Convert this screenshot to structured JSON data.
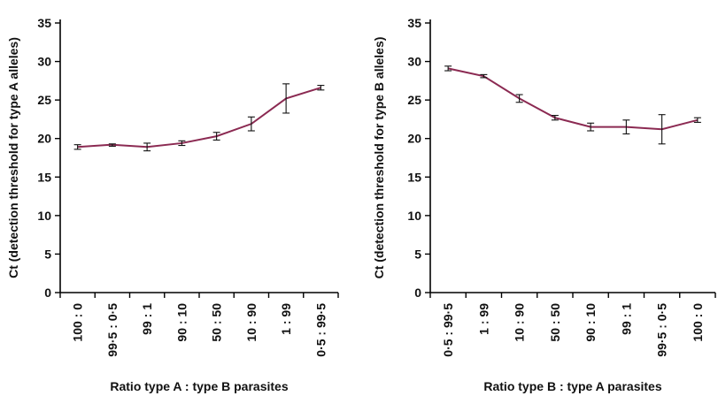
{
  "chart_data": [
    {
      "type": "line",
      "xlabel": "Ratio type A : type B parasites",
      "ylabel": "Ct (detection threshold for type A alleles)",
      "ylim": [
        0,
        35
      ],
      "yticks": [
        0,
        5,
        10,
        15,
        20,
        25,
        30,
        35
      ],
      "categories": [
        "100 : 0",
        "99·5 : 0·5",
        "99 : 1",
        "90 : 10",
        "50 : 50",
        "10 : 90",
        "1 : 99",
        "0·5 : 99·5"
      ],
      "series": [
        {
          "values": [
            18.9,
            19.2,
            18.9,
            19.4,
            20.3,
            21.9,
            25.2,
            26.6
          ],
          "err_low": [
            18.6,
            19.0,
            18.4,
            19.1,
            19.8,
            21.0,
            23.3,
            26.3
          ],
          "err_high": [
            19.2,
            19.3,
            19.4,
            19.7,
            20.8,
            22.8,
            27.1,
            26.9
          ]
        }
      ],
      "grid": false
    },
    {
      "type": "line",
      "xlabel": "Ratio type B : type A parasites",
      "ylabel": "Ct (detection threshold for type B alleles)",
      "ylim": [
        0,
        35
      ],
      "yticks": [
        0,
        5,
        10,
        15,
        20,
        25,
        30,
        35
      ],
      "categories": [
        "0·5 : 99·5",
        "1 : 99",
        "10 : 90",
        "50 : 50",
        "90 : 10",
        "99 : 1",
        "99·5 : 0·5",
        "100 : 0"
      ],
      "series": [
        {
          "values": [
            29.1,
            28.1,
            25.2,
            22.7,
            21.5,
            21.5,
            21.2,
            22.4
          ],
          "err_low": [
            28.8,
            27.9,
            24.7,
            22.4,
            21.0,
            20.6,
            19.3,
            22.1
          ],
          "err_high": [
            29.4,
            28.3,
            25.7,
            23.0,
            22.0,
            22.4,
            23.1,
            22.7
          ]
        }
      ],
      "grid": false
    }
  ],
  "colors": {
    "series": "#8b2a52",
    "axis": "#000000",
    "errorbar": "#111111"
  }
}
